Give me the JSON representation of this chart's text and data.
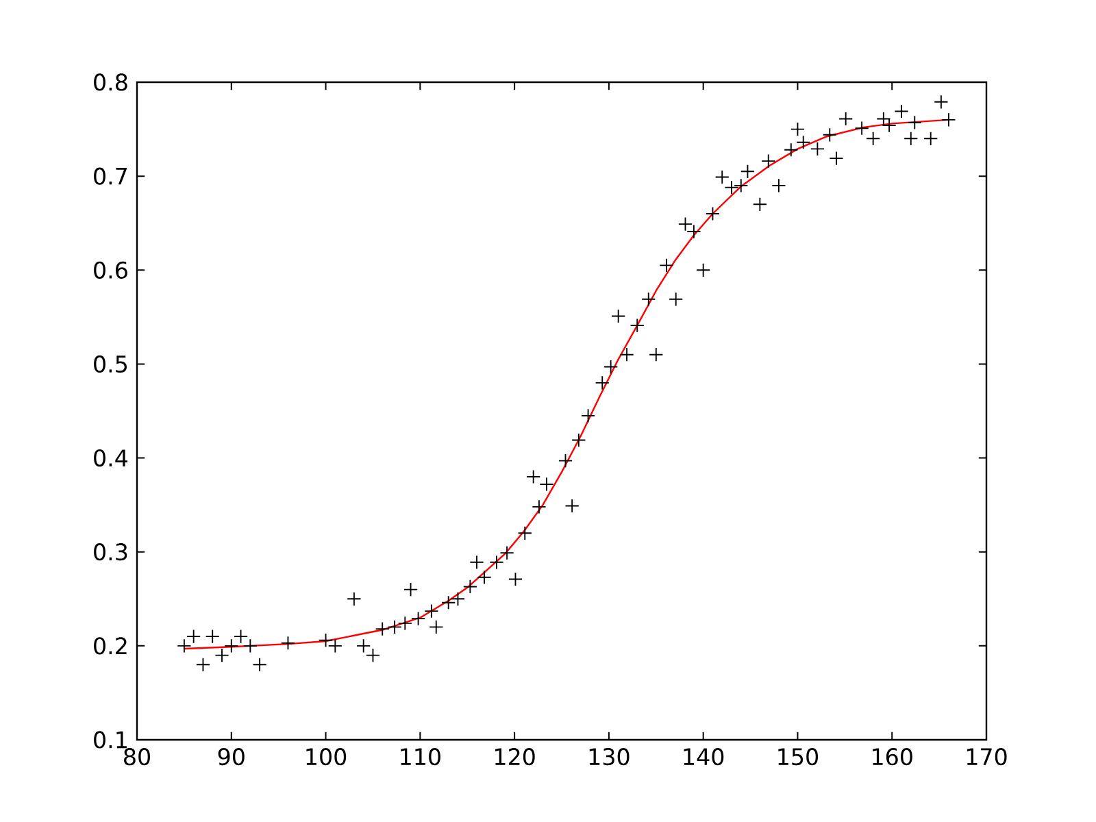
{
  "chart_data": {
    "type": "scatter",
    "xlim": [
      80,
      170
    ],
    "ylim": [
      0.1,
      0.8
    ],
    "xticks": [
      80,
      90,
      100,
      110,
      120,
      130,
      140,
      150,
      160,
      170
    ],
    "yticks": [
      0.1,
      0.2,
      0.3,
      0.4,
      0.5,
      0.6,
      0.7,
      0.8
    ],
    "series": [
      {
        "color": "#000000",
        "marker": "cross",
        "x": [
          85,
          86,
          87,
          88,
          89,
          90,
          91,
          92,
          93,
          96,
          100,
          101,
          103,
          104,
          105,
          106,
          107.3,
          108.4,
          109,
          109.8,
          111.2,
          111.7,
          113,
          114,
          115.3,
          116,
          116.8,
          118.1,
          119.2,
          120.1,
          121.1,
          122,
          122.6,
          123.4,
          125.4,
          126.1,
          126.8,
          127.8,
          129.3,
          130.2,
          131,
          131.9,
          133,
          134.2,
          135,
          136.1,
          137.1,
          138.1,
          139,
          140,
          141,
          142,
          143,
          144,
          144.7,
          146,
          146.9,
          148,
          149.3,
          150,
          150.6,
          152.1,
          153.4,
          154.1,
          155.1,
          156.8,
          158,
          159.1,
          159.7,
          161,
          162,
          162.4,
          164.1,
          165.2,
          166
        ],
        "values": [
          0.2,
          0.21,
          0.18,
          0.21,
          0.19,
          0.2,
          0.21,
          0.2,
          0.18,
          0.203,
          0.206,
          0.2,
          0.25,
          0.2,
          0.19,
          0.218,
          0.22,
          0.224,
          0.26,
          0.229,
          0.237,
          0.22,
          0.246,
          0.25,
          0.263,
          0.289,
          0.273,
          0.289,
          0.299,
          0.271,
          0.32,
          0.38,
          0.348,
          0.372,
          0.397,
          0.349,
          0.419,
          0.445,
          0.48,
          0.497,
          0.551,
          0.51,
          0.541,
          0.569,
          0.51,
          0.605,
          0.569,
          0.649,
          0.641,
          0.6,
          0.66,
          0.699,
          0.688,
          0.69,
          0.705,
          0.67,
          0.716,
          0.69,
          0.728,
          0.75,
          0.736,
          0.729,
          0.744,
          0.719,
          0.761,
          0.751,
          0.74,
          0.761,
          0.754,
          0.769,
          0.74,
          0.757,
          0.74,
          0.779,
          0.76
        ]
      },
      {
        "type": "line",
        "color": "#ff0000",
        "marker": "none",
        "line_style": "solid",
        "x": [
          85,
          90,
          96,
          100,
          106,
          110,
          113,
          115,
          117,
          119,
          121,
          123,
          125,
          127,
          129,
          131,
          133,
          135,
          137,
          139,
          141,
          144,
          147,
          150,
          153,
          157,
          160,
          163,
          166
        ],
        "values": [
          0.197,
          0.199,
          0.202,
          0.205,
          0.217,
          0.23,
          0.248,
          0.262,
          0.28,
          0.298,
          0.322,
          0.35,
          0.385,
          0.423,
          0.465,
          0.505,
          0.541,
          0.578,
          0.61,
          0.637,
          0.66,
          0.689,
          0.711,
          0.729,
          0.742,
          0.752,
          0.756,
          0.758,
          0.76
        ]
      }
    ]
  }
}
